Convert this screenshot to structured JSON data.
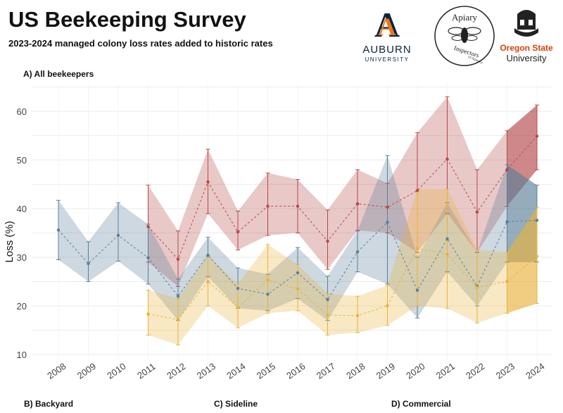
{
  "title": "US Beekeeping Survey",
  "subtitle": "2023-2024 managed colony loss rates added to historic rates",
  "panels": {
    "a": "A) All beekeepers",
    "b": "B) Backyard",
    "c": "C) Sideline",
    "d": "D) Commercial"
  },
  "logos": {
    "auburn_top": "AUBURN",
    "auburn_bottom": "UNIVERSITY",
    "apiary_top": "Apiary",
    "apiary_bottom": "Inspectors",
    "apiary_small": "of America",
    "oregon_top": "Oregon State",
    "oregon_bottom": "University"
  },
  "colors": {
    "red": "#b5484a",
    "blue": "#5b7f98",
    "yellow": "#e8b23c",
    "auburn_navy": "#0c2340",
    "auburn_orange": "#e87722",
    "oregon_orange": "#d73f09"
  },
  "chart_data": {
    "type": "line",
    "xlabel": "",
    "ylabel": "Loss (%)",
    "ylim": [
      10,
      65
    ],
    "yticks": [
      10,
      20,
      30,
      40,
      50,
      60
    ],
    "xticks": [
      "2008",
      "2009",
      "2010",
      "2011",
      "2012",
      "2013",
      "2014",
      "2015",
      "2016",
      "2017",
      "2018",
      "2019",
      "2020",
      "2021",
      "2022",
      "2023",
      "2024"
    ],
    "grid": true,
    "series": [
      {
        "name": "",
        "color": "#b5484a",
        "x": [
          2011,
          2012,
          2013,
          2014,
          2015,
          2016,
          2017,
          2018,
          2019,
          2020,
          2021,
          2022,
          2023,
          2024
        ],
        "values": [
          36.3,
          29.6,
          45.5,
          35.2,
          40.5,
          40.5,
          33.3,
          41.0,
          40.3,
          43.7,
          50.2,
          39.3,
          48.0,
          54.9
        ],
        "lower": [
          29.0,
          24.0,
          39.0,
          31.5,
          34.5,
          35.0,
          27.5,
          35.5,
          35.0,
          31.0,
          39.0,
          31.0,
          40.5,
          48.0
        ],
        "upper": [
          44.8,
          35.4,
          52.2,
          39.5,
          47.3,
          46.0,
          39.7,
          48.0,
          45.2,
          55.6,
          63.0,
          48.0,
          56.0,
          61.3
        ]
      },
      {
        "name": "",
        "color": "#5b7f98",
        "x": [
          2008,
          2009,
          2010,
          2011,
          2012,
          2013,
          2014,
          2015,
          2016,
          2017,
          2018,
          2019,
          2020,
          2021,
          2022,
          2023,
          2024
        ],
        "values": [
          35.6,
          28.7,
          34.5,
          29.9,
          22.0,
          30.4,
          23.6,
          22.4,
          26.8,
          21.3,
          31.1,
          37.2,
          23.2,
          33.8,
          24.0,
          37.3,
          37.6
        ],
        "lower": [
          29.5,
          25.0,
          29.2,
          24.5,
          17.0,
          26.0,
          19.5,
          19.0,
          21.5,
          17.0,
          27.0,
          24.5,
          17.5,
          27.0,
          20.0,
          29.0,
          29.0
        ],
        "upper": [
          41.7,
          33.2,
          41.2,
          36.8,
          25.5,
          34.1,
          27.8,
          26.5,
          32.0,
          26.1,
          35.4,
          50.9,
          30.0,
          41.2,
          31.0,
          49.0,
          44.8
        ]
      },
      {
        "name": "",
        "color": "#e8b23c",
        "x": [
          2011,
          2012,
          2013,
          2014,
          2015,
          2016,
          2017,
          2018,
          2019,
          2020,
          2021,
          2022,
          2023,
          2024
        ],
        "values": [
          18.3,
          17.2,
          25.0,
          19.7,
          25.3,
          23.5,
          18.1,
          18.0,
          20.0,
          31.8,
          30.6,
          23.8,
          25.0,
          30.2
        ],
        "lower": [
          14.0,
          12.0,
          20.0,
          15.5,
          18.5,
          19.0,
          14.0,
          14.5,
          16.0,
          20.0,
          19.5,
          16.5,
          18.5,
          20.5
        ],
        "upper": [
          23.2,
          21.5,
          30.5,
          24.5,
          32.6,
          28.5,
          22.5,
          22.0,
          24.2,
          44.0,
          44.0,
          31.5,
          31.0,
          40.2
        ]
      }
    ]
  }
}
